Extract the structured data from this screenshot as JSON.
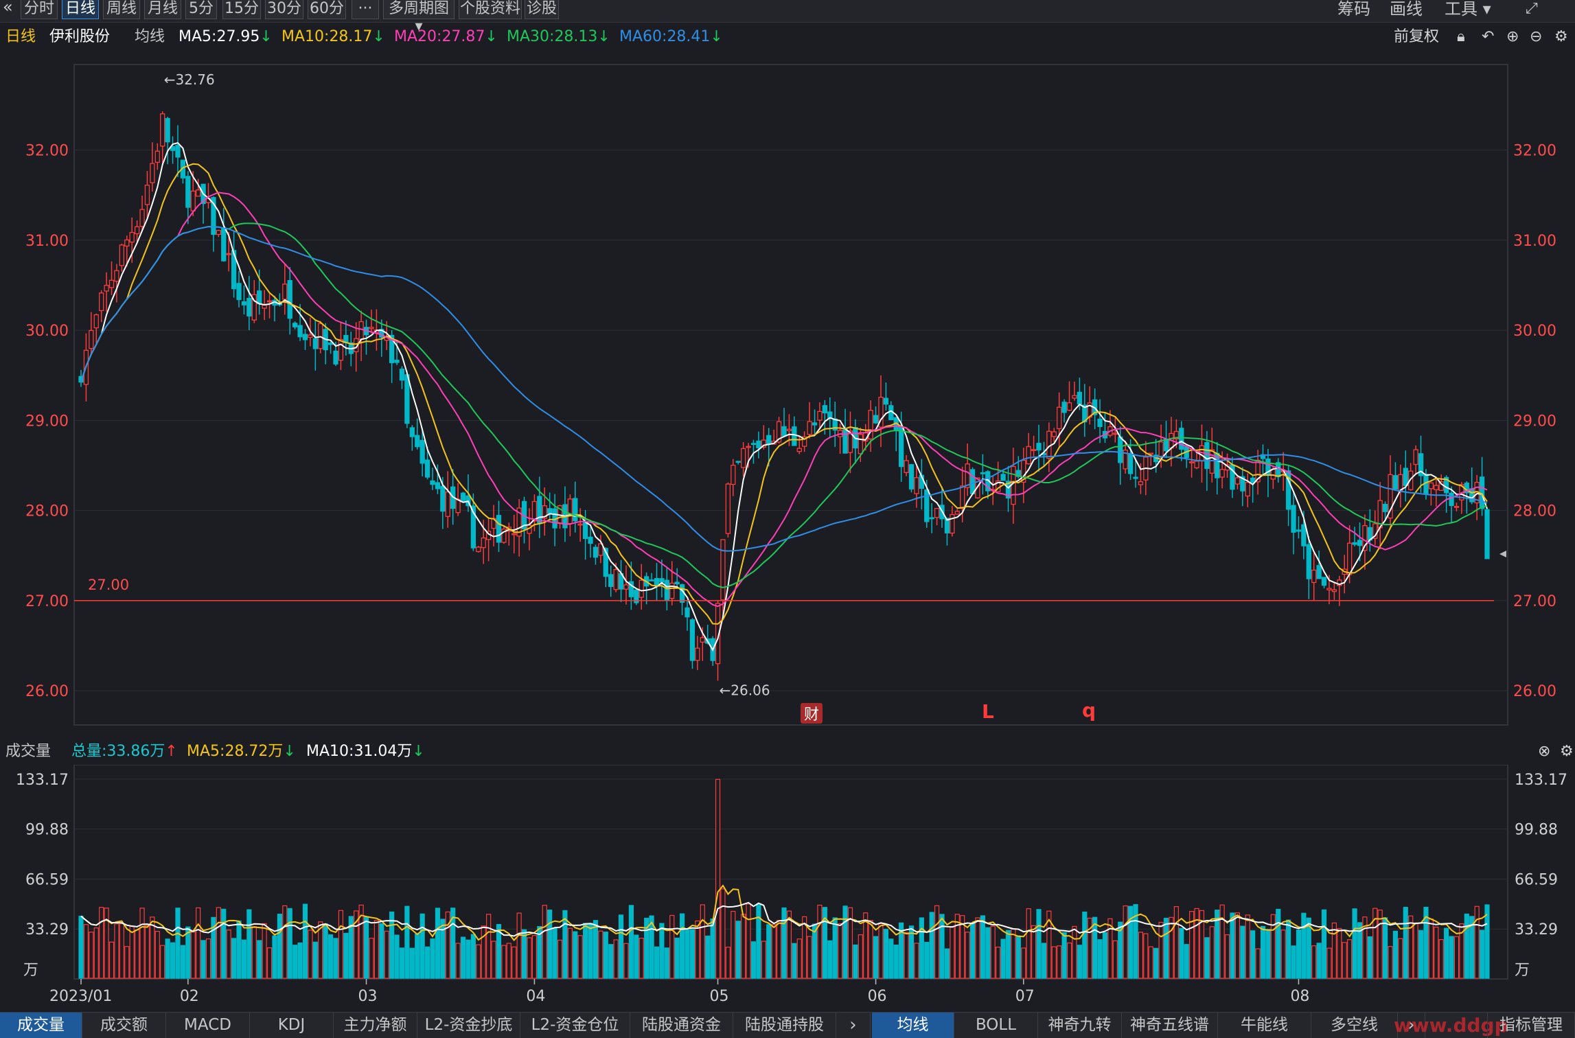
{
  "toolbar": {
    "back_icon": "double-chevron-left-icon",
    "periods": [
      "分时",
      "日线",
      "周线",
      "月线",
      "5分",
      "15分",
      "30分",
      "60分",
      "···",
      "多周期图 ▾",
      "个股资料",
      "诊股"
    ],
    "active_period": "日线",
    "right_tools": [
      "筹码",
      "画线",
      "工具 ▾"
    ]
  },
  "info": {
    "period": "日线",
    "stock_name": "伊利股份",
    "ma_label": "均线",
    "ma5": "MA5:27.95",
    "ma10": "MA10:28.17",
    "ma20": "MA20:27.87",
    "ma30": "MA30:28.13",
    "ma60": "MA60:28.41",
    "arrow": "↓",
    "adjust": "前复权"
  },
  "colors": {
    "up": "#ff3b3b",
    "down": "#00b8c8",
    "ma5": "#ffffff",
    "ma10": "#f5c518",
    "ma20": "#ff3fb7",
    "ma30": "#1ec85a",
    "ma60": "#2f8fe8",
    "axis_red": "#ff4d4d"
  },
  "price_axis": [
    "32.00",
    "31.00",
    "30.00",
    "29.00",
    "28.00",
    "27.00",
    "26.00"
  ],
  "annotations": {
    "high": "←32.76",
    "low": "←26.06",
    "hline": "27.00",
    "marker_cai": "财",
    "marker_L": "L",
    "marker_q": "q"
  },
  "volume": {
    "title": "成交量",
    "total": "总量:33.86万",
    "total_arrow": "↑",
    "ma5": "MA5:28.72万",
    "ma10": "MA10:31.04万",
    "arrow": "↓",
    "axis": [
      "133.17",
      "99.88",
      "66.59",
      "33.29"
    ],
    "unit": "万"
  },
  "x_axis": [
    "2023/01",
    "02",
    "03",
    "04",
    "05",
    "06",
    "07",
    "08"
  ],
  "bottom_tabs_left": [
    "成交量",
    "成交额",
    "MACD",
    "KDJ",
    "主力净额",
    "L2-资金抄底",
    "L2-资金仓位",
    "陆股通资金",
    "陆股通持股"
  ],
  "bottom_tabs_right": [
    "均线",
    "BOLL",
    "神奇九转",
    "神奇五线谱",
    "牛能线",
    "多空线"
  ],
  "indicator_manage": "指标管理",
  "watermark": "www.ddgp",
  "chart_data": {
    "type": "candlestick",
    "title": "",
    "ylim": [
      25.6,
      32.9
    ],
    "key_levels": {
      "high": 32.76,
      "low": 26.06,
      "horizontal_line": 27.0
    },
    "months": [
      "2023/01",
      "02",
      "03",
      "04",
      "05",
      "06",
      "07",
      "08"
    ],
    "last_ma": {
      "MA5": 27.95,
      "MA10": 28.17,
      "MA20": 27.87,
      "MA30": 28.13,
      "MA60": 28.41
    },
    "volume_axis": [
      33.29,
      66.59,
      99.88,
      133.17
    ]
  }
}
